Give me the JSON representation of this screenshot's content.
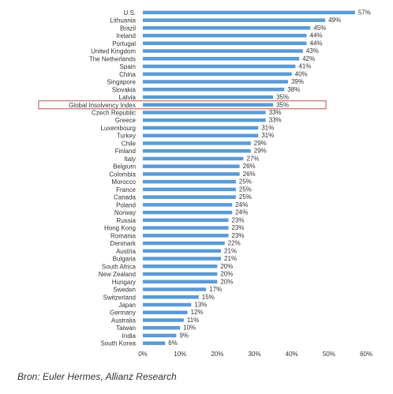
{
  "chart_data": {
    "type": "bar",
    "orientation": "horizontal",
    "categories": [
      "U.S.",
      "Lithuania",
      "Brazil",
      "Ireland",
      "Portugal",
      "United Kingdom",
      "The Netherlands",
      "Spain",
      "China",
      "Singapore",
      "Slovakia",
      "Latvia",
      "Global Insolvency Index",
      "Czech Republic",
      "Greece",
      "Luxembourg",
      "Turkey",
      "Chile",
      "Finland",
      "Italy",
      "Belgium",
      "Colombia",
      "Morocco",
      "France",
      "Canada",
      "Poland",
      "Norway",
      "Russia",
      "Hong Kong",
      "Romania",
      "Denmark",
      "Austria",
      "Bulgaria",
      "South Africa",
      "New Zealand",
      "Hungary",
      "Sweden",
      "Switzerland",
      "Japan",
      "Germany",
      "Australia",
      "Taiwan",
      "India",
      "South Korea"
    ],
    "values": [
      57,
      49,
      45,
      44,
      44,
      43,
      42,
      41,
      40,
      39,
      38,
      35,
      35,
      33,
      33,
      31,
      31,
      29,
      29,
      27,
      26,
      26,
      25,
      25,
      25,
      24,
      24,
      23,
      23,
      23,
      22,
      21,
      21,
      20,
      20,
      20,
      17,
      15,
      13,
      12,
      11,
      10,
      9,
      6
    ],
    "value_labels": [
      "57%",
      "49%",
      "45%",
      "44%",
      "44%",
      "43%",
      "42%",
      "41%",
      "40%",
      "39%",
      "38%",
      "35%",
      "35%",
      "33%",
      "33%",
      "31%",
      "31%",
      "29%",
      "29%",
      "27%",
      "26%",
      "26%",
      "25%",
      "25%",
      "25%",
      "24%",
      "24%",
      "23%",
      "23%",
      "23%",
      "22%",
      "21%",
      "21%",
      "20%",
      "20%",
      "20%",
      "17%",
      "15%",
      "13%",
      "12%",
      "11%",
      "10%",
      "9%",
      "6%"
    ],
    "highlighted": "Global Insolvency Index",
    "xlim": [
      0,
      60
    ],
    "xticks": [
      "0%",
      "10%",
      "20%",
      "30%",
      "40%",
      "50%",
      "60%"
    ],
    "grid": false,
    "bar_color": "#5b9bd5",
    "highlight_color": "#c0504d",
    "title": "",
    "xlabel": "",
    "ylabel": ""
  },
  "source_text": "Bron: Euler Hermes, Allianz Research"
}
